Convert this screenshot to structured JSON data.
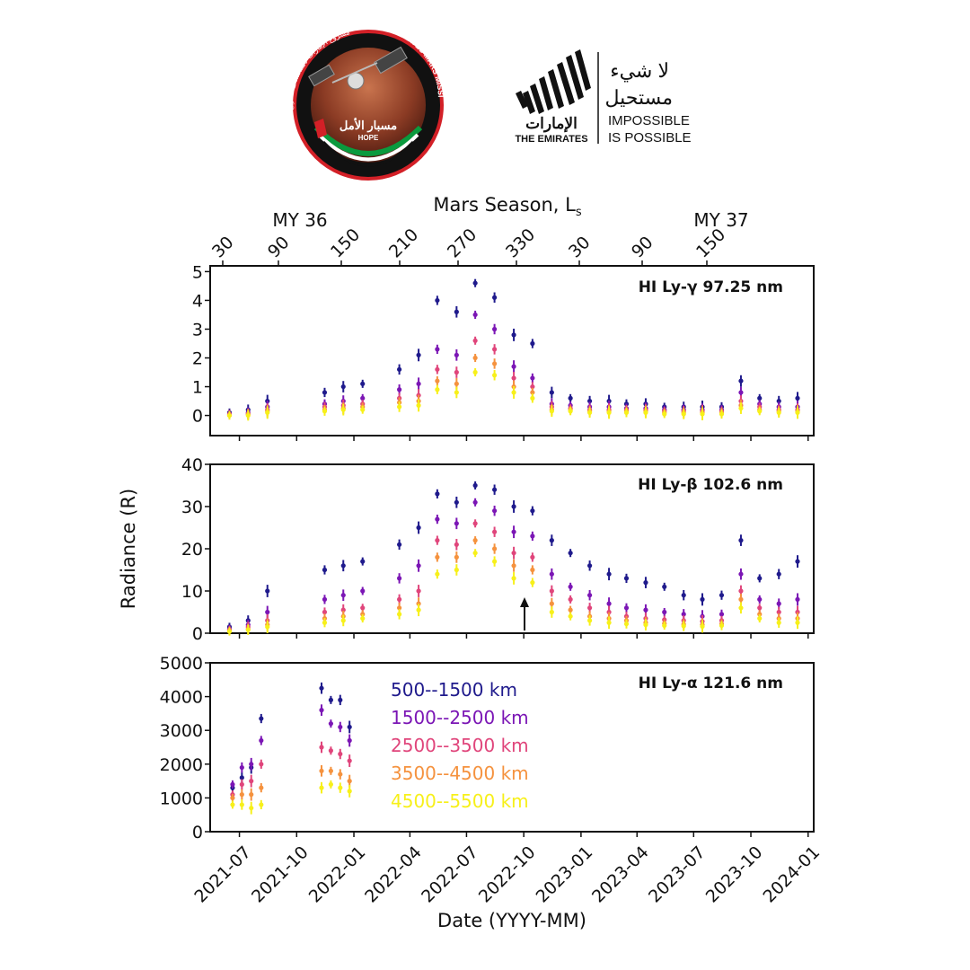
{
  "header": {
    "hope_logo": {
      "ring_text_en": "EMIRATES MARS MISSION",
      "ring_text_ar": "مشروع الإمارات لاستكشاف المريخ",
      "name_ar": "مسبار الأمل",
      "name_en": "HOPE"
    },
    "emirates_brand": {
      "wordmark_ar": "الإمارات",
      "wordmark_en": "THE EMIRATES",
      "slogan_ar_line1": "لا شيء",
      "slogan_ar_line2": "مستحيل",
      "slogan_en_line1": "IMPOSSIBLE",
      "slogan_en_line2": "IS POSSIBLE"
    }
  },
  "colors": {
    "500--1500 km": "#1f1a8c",
    "1500--2500 km": "#7b16b5",
    "2500--3500 km": "#e0457b",
    "3500--4500 km": "#f5923e",
    "4500--5500 km": "#f7f01a"
  },
  "chart_data": {
    "type": "scatter",
    "top_axis_label": "Mars Season, L",
    "top_axis_label_sub": "s",
    "mars_year_labels": [
      "MY 36",
      "MY 37"
    ],
    "top_ticks": [
      "30",
      "90",
      "150",
      "210",
      "270",
      "330",
      "30",
      "90",
      "150"
    ],
    "x_tick_labels": [
      "2021-07",
      "2021-10",
      "2022-01",
      "2022-04",
      "2022-07",
      "2022-10",
      "2023-01",
      "2023-04",
      "2023-07",
      "2023-10",
      "2024-01"
    ],
    "xlabel": "Date (YYYY-MM)",
    "ylabel": "Radiance (R)",
    "xlim": [
      "2021-05-15",
      "2024-01-10"
    ],
    "legend_entries": [
      "500--1500 km",
      "1500--2500 km",
      "2500--3500 km",
      "3500--4500 km",
      "4500--5500 km"
    ],
    "panels": [
      {
        "title": "HI Ly-γ 97.25 nm",
        "ylim": [
          -0.7,
          5.2
        ],
        "yticks": [
          "0",
          "1",
          "2",
          "3",
          "4",
          "5"
        ],
        "series": [
          {
            "name": "500--1500 km",
            "x": [
              "2021-06",
              "2021-07",
              "2021-08",
              "2021-11",
              "2021-12",
              "2022-01",
              "2022-03",
              "2022-04",
              "2022-05",
              "2022-06",
              "2022-07",
              "2022-08",
              "2022-09",
              "2022-10",
              "2022-11",
              "2022-12",
              "2023-01",
              "2023-02",
              "2023-03",
              "2023-04",
              "2023-05",
              "2023-06",
              "2023-07",
              "2023-08",
              "2023-09",
              "2023-10",
              "2023-11",
              "2023-12"
            ],
            "y": [
              0.1,
              0.2,
              0.5,
              0.8,
              1.0,
              1.1,
              1.6,
              2.1,
              4.0,
              3.6,
              4.6,
              4.1,
              2.8,
              2.5,
              0.8,
              0.6,
              0.5,
              0.5,
              0.4,
              0.4,
              0.3,
              0.3,
              0.3,
              0.3,
              1.2,
              0.6,
              0.5,
              0.6
            ]
          },
          {
            "name": "1500--2500 km",
            "x": [
              "2021-06",
              "2021-07",
              "2021-08",
              "2021-11",
              "2021-12",
              "2022-01",
              "2022-03",
              "2022-04",
              "2022-05",
              "2022-06",
              "2022-07",
              "2022-08",
              "2022-09",
              "2022-10",
              "2022-11",
              "2022-12",
              "2023-01",
              "2023-02",
              "2023-03",
              "2023-04",
              "2023-05",
              "2023-06",
              "2023-07",
              "2023-08",
              "2023-09",
              "2023-10",
              "2023-11",
              "2023-12"
            ],
            "y": [
              0.05,
              0.1,
              0.3,
              0.4,
              0.5,
              0.6,
              0.9,
              1.1,
              2.3,
              2.1,
              3.5,
              3.0,
              1.7,
              1.3,
              0.4,
              0.35,
              0.3,
              0.3,
              0.25,
              0.25,
              0.2,
              0.2,
              0.2,
              0.2,
              0.8,
              0.4,
              0.3,
              0.3
            ]
          },
          {
            "name": "2500--3500 km",
            "x": [
              "2021-06",
              "2021-07",
              "2021-08",
              "2021-11",
              "2021-12",
              "2022-01",
              "2022-03",
              "2022-04",
              "2022-05",
              "2022-06",
              "2022-07",
              "2022-08",
              "2022-09",
              "2022-10",
              "2022-11",
              "2022-12",
              "2023-01",
              "2023-02",
              "2023-03",
              "2023-04",
              "2023-05",
              "2023-06",
              "2023-07",
              "2023-08",
              "2023-09",
              "2023-10",
              "2023-11",
              "2023-12"
            ],
            "y": [
              0.05,
              0.05,
              0.2,
              0.3,
              0.35,
              0.4,
              0.6,
              0.7,
              1.6,
              1.5,
              2.6,
              2.3,
              1.3,
              1.0,
              0.3,
              0.25,
              0.2,
              0.2,
              0.2,
              0.2,
              0.15,
              0.15,
              0.15,
              0.15,
              0.5,
              0.3,
              0.2,
              0.2
            ]
          },
          {
            "name": "3500--4500 km",
            "x": [
              "2021-06",
              "2021-07",
              "2021-08",
              "2021-11",
              "2021-12",
              "2022-01",
              "2022-03",
              "2022-04",
              "2022-05",
              "2022-06",
              "2022-07",
              "2022-08",
              "2022-09",
              "2022-10",
              "2022-11",
              "2022-12",
              "2023-01",
              "2023-02",
              "2023-03",
              "2023-04",
              "2023-05",
              "2023-06",
              "2023-07",
              "2023-08",
              "2023-09",
              "2023-10",
              "2023-11",
              "2023-12"
            ],
            "y": [
              0.0,
              0.05,
              0.15,
              0.2,
              0.25,
              0.3,
              0.45,
              0.5,
              1.2,
              1.1,
              2.0,
              1.8,
              1.0,
              0.8,
              0.2,
              0.2,
              0.15,
              0.15,
              0.15,
              0.15,
              0.1,
              0.1,
              0.1,
              0.1,
              0.35,
              0.2,
              0.15,
              0.15
            ]
          },
          {
            "name": "4500--5500 km",
            "x": [
              "2021-06",
              "2021-07",
              "2021-08",
              "2021-11",
              "2021-12",
              "2022-01",
              "2022-03",
              "2022-04",
              "2022-05",
              "2022-06",
              "2022-07",
              "2022-08",
              "2022-09",
              "2022-10",
              "2022-11",
              "2022-12",
              "2023-01",
              "2023-02",
              "2023-03",
              "2023-04",
              "2023-05",
              "2023-06",
              "2023-07",
              "2023-08",
              "2023-09",
              "2023-10",
              "2023-11",
              "2023-12"
            ],
            "y": [
              0.0,
              0.0,
              0.1,
              0.15,
              0.2,
              0.2,
              0.3,
              0.35,
              0.9,
              0.8,
              1.5,
              1.4,
              0.8,
              0.6,
              0.15,
              0.15,
              0.1,
              0.1,
              0.1,
              0.1,
              0.05,
              0.05,
              0.05,
              0.05,
              0.25,
              0.15,
              0.1,
              0.1
            ]
          }
        ]
      },
      {
        "title": "HI Ly-β 102.6 nm",
        "ylim": [
          0,
          40
        ],
        "yticks": [
          "0",
          "10",
          "20",
          "30",
          "40"
        ],
        "arrow_at": "2022-10-20",
        "series": [
          {
            "name": "500--1500 km",
            "x": [
              "2021-06",
              "2021-07",
              "2021-08",
              "2021-11",
              "2021-12",
              "2022-01",
              "2022-03",
              "2022-04",
              "2022-05",
              "2022-06",
              "2022-07",
              "2022-08",
              "2022-09",
              "2022-10",
              "2022-11",
              "2022-12",
              "2023-01",
              "2023-02",
              "2023-03",
              "2023-04",
              "2023-05",
              "2023-06",
              "2023-07",
              "2023-08",
              "2023-09",
              "2023-10",
              "2023-11",
              "2023-12"
            ],
            "y": [
              1.5,
              3,
              10,
              15,
              16,
              17,
              21,
              25,
              33,
              31,
              35,
              34,
              30,
              29,
              22,
              19,
              16,
              14,
              13,
              12,
              11,
              9,
              8,
              9,
              22,
              13,
              14,
              17
            ]
          },
          {
            "name": "1500--2500 km",
            "x": [
              "2021-06",
              "2021-07",
              "2021-08",
              "2021-11",
              "2021-12",
              "2022-01",
              "2022-03",
              "2022-04",
              "2022-05",
              "2022-06",
              "2022-07",
              "2022-08",
              "2022-09",
              "2022-10",
              "2022-11",
              "2022-12",
              "2023-01",
              "2023-02",
              "2023-03",
              "2023-04",
              "2023-05",
              "2023-06",
              "2023-07",
              "2023-08",
              "2023-09",
              "2023-10",
              "2023-11",
              "2023-12"
            ],
            "y": [
              1,
              2,
              5,
              8,
              9,
              10,
              13,
              16,
              27,
              26,
              31,
              29,
              24,
              23,
              14,
              11,
              9,
              7,
              6,
              5.5,
              5,
              4.5,
              4,
              4.5,
              14,
              8,
              7,
              8
            ]
          },
          {
            "name": "2500--3500 km",
            "x": [
              "2021-06",
              "2021-07",
              "2021-08",
              "2021-11",
              "2021-12",
              "2022-01",
              "2022-03",
              "2022-04",
              "2022-05",
              "2022-06",
              "2022-07",
              "2022-08",
              "2022-09",
              "2022-10",
              "2022-11",
              "2022-12",
              "2023-01",
              "2023-02",
              "2023-03",
              "2023-04",
              "2023-05",
              "2023-06",
              "2023-07",
              "2023-08",
              "2023-09",
              "2023-10",
              "2023-11",
              "2023-12"
            ],
            "y": [
              0.8,
              1.5,
              3,
              5,
              5.5,
              6,
              8,
              10,
              22,
              21,
              26,
              24,
              19,
              18,
              10,
              8,
              6,
              5,
              4,
              3.5,
              3.2,
              3,
              2.8,
              3,
              10,
              6,
              5,
              5
            ]
          },
          {
            "name": "3500--4500 km",
            "x": [
              "2021-06",
              "2021-07",
              "2021-08",
              "2021-11",
              "2021-12",
              "2022-01",
              "2022-03",
              "2022-04",
              "2022-05",
              "2022-06",
              "2022-07",
              "2022-08",
              "2022-09",
              "2022-10",
              "2022-11",
              "2022-12",
              "2023-01",
              "2023-02",
              "2023-03",
              "2023-04",
              "2023-05",
              "2023-06",
              "2023-07",
              "2023-08",
              "2023-09",
              "2023-10",
              "2023-11",
              "2023-12"
            ],
            "y": [
              0.6,
              1,
              2,
              3.5,
              4,
              4.5,
              6,
              7,
              18,
              18,
              22,
              20,
              16,
              15,
              7,
              5.5,
              4,
              3.5,
              3,
              2.5,
              2.3,
              2.1,
              2,
              2.2,
              8,
              4.5,
              3.5,
              3.5
            ]
          },
          {
            "name": "4500--5500 km",
            "x": [
              "2021-06",
              "2021-07",
              "2021-08",
              "2021-11",
              "2021-12",
              "2022-01",
              "2022-03",
              "2022-04",
              "2022-05",
              "2022-06",
              "2022-07",
              "2022-08",
              "2022-09",
              "2022-10",
              "2022-11",
              "2022-12",
              "2023-01",
              "2023-02",
              "2023-03",
              "2023-04",
              "2023-05",
              "2023-06",
              "2023-07",
              "2023-08",
              "2023-09",
              "2023-10",
              "2023-11",
              "2023-12"
            ],
            "y": [
              0.4,
              0.8,
              1.5,
              2.5,
              3,
              3.5,
              4.5,
              5.5,
              14,
              15,
              19,
              17,
              13,
              12,
              5,
              4,
              3,
              2.5,
              2.2,
              2,
              1.8,
              1.7,
              1.6,
              1.8,
              6,
              3.5,
              2.5,
              2.5
            ]
          }
        ]
      },
      {
        "title": "HI Ly-α 121.6 nm",
        "ylim": [
          0,
          5000
        ],
        "yticks": [
          "0",
          "1000",
          "2000",
          "3000",
          "4000",
          "5000"
        ],
        "series": [
          {
            "name": "500--1500 km",
            "x": [
              "2021-06-20",
              "2021-07-05",
              "2021-07-20",
              "2021-08-05",
              "2021-11-10",
              "2021-11-25",
              "2021-12-10",
              "2021-12-25"
            ],
            "y": [
              1300,
              1600,
              1900,
              3350,
              4250,
              3900,
              3900,
              3100
            ]
          },
          {
            "name": "1500--2500 km",
            "x": [
              "2021-06-20",
              "2021-07-05",
              "2021-07-20",
              "2021-08-05",
              "2021-11-10",
              "2021-11-25",
              "2021-12-10",
              "2021-12-25"
            ],
            "y": [
              1400,
              1900,
              2000,
              2700,
              3600,
              3200,
              3100,
              2700
            ]
          },
          {
            "name": "2500--3500 km",
            "x": [
              "2021-06-20",
              "2021-07-05",
              "2021-07-20",
              "2021-08-05",
              "2021-11-10",
              "2021-11-25",
              "2021-12-10",
              "2021-12-25"
            ],
            "y": [
              1100,
              1400,
              1500,
              2000,
              2500,
              2400,
              2300,
              2100
            ]
          },
          {
            "name": "3500--4500 km",
            "x": [
              "2021-06-20",
              "2021-07-05",
              "2021-07-20",
              "2021-08-05",
              "2021-11-10",
              "2021-11-25",
              "2021-12-10",
              "2021-12-25"
            ],
            "y": [
              1000,
              1100,
              1100,
              1300,
              1800,
              1800,
              1700,
              1500
            ]
          },
          {
            "name": "4500--5500 km",
            "x": [
              "2021-06-20",
              "2021-07-05",
              "2021-07-20",
              "2021-08-05",
              "2021-11-10",
              "2021-11-25",
              "2021-12-10",
              "2021-12-25"
            ],
            "y": [
              800,
              800,
              700,
              800,
              1300,
              1400,
              1300,
              1200
            ]
          }
        ]
      }
    ]
  }
}
